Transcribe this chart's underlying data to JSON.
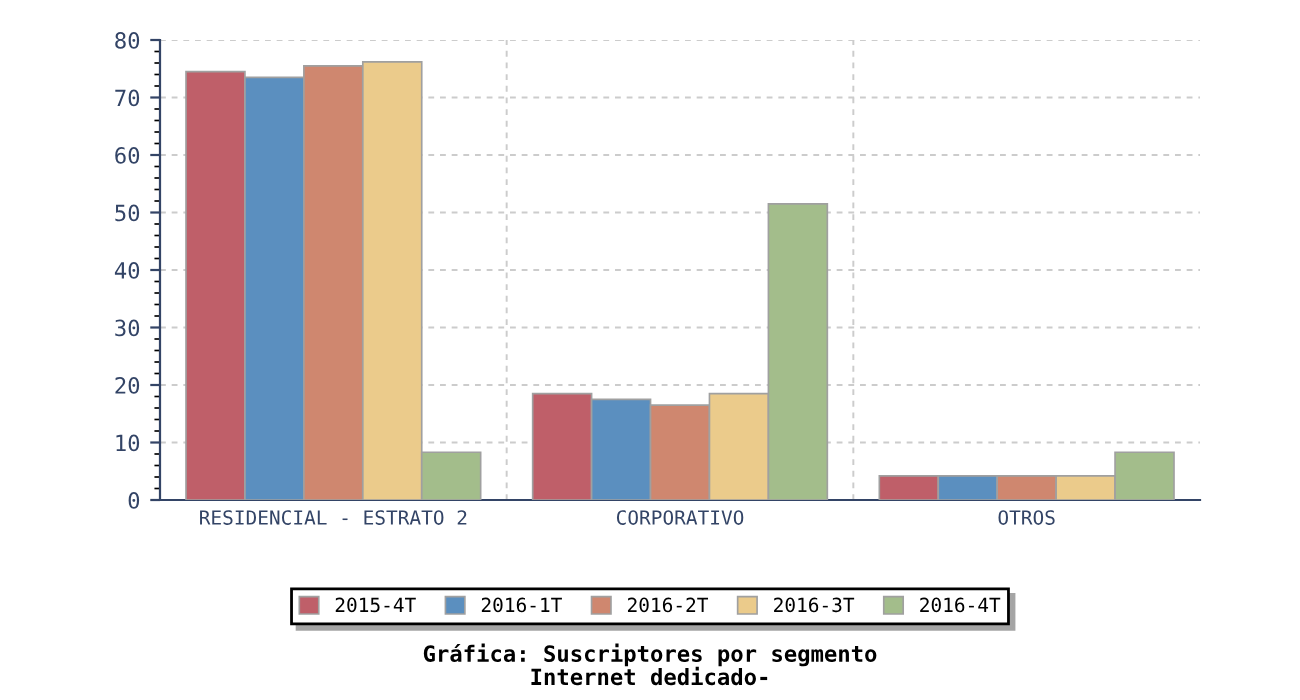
{
  "chart_data": {
    "type": "bar",
    "title": "Gráfica: Suscriptores por segmento\nInternet dedicado-",
    "categories": [
      "RESIDENCIAL - ESTRATO 2",
      "CORPORATIVO",
      "OTROS"
    ],
    "series": [
      {
        "name": "2015-4T",
        "color": "#bf5f69",
        "values": [
          74.5,
          18.5,
          4.2
        ]
      },
      {
        "name": "2016-1T",
        "color": "#5b8fbf",
        "values": [
          73.5,
          17.5,
          4.2
        ]
      },
      {
        "name": "2016-2T",
        "color": "#cf876f",
        "values": [
          75.5,
          16.5,
          4.2
        ]
      },
      {
        "name": "2016-3T",
        "color": "#ebcb8b",
        "values": [
          76.2,
          18.5,
          4.2
        ]
      },
      {
        "name": "2016-4T",
        "color": "#a3bd8b",
        "values": [
          8.3,
          51.5,
          8.3
        ]
      }
    ],
    "ylim": [
      0,
      80
    ],
    "yticks": [
      0,
      10,
      20,
      30,
      40,
      50,
      60,
      70,
      80
    ],
    "grid": true,
    "legend": "bottom"
  }
}
